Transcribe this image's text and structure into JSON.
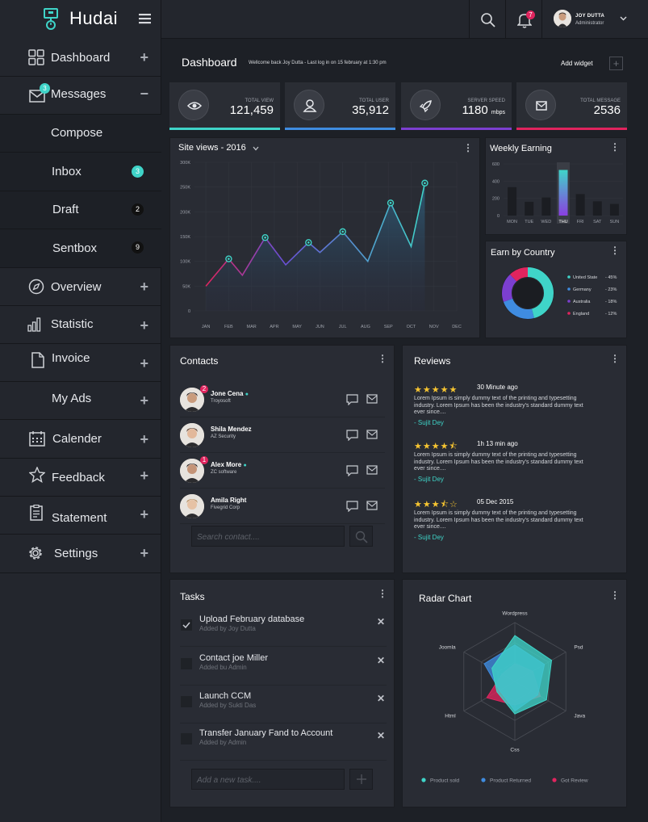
{
  "brand": {
    "name": "Hudai"
  },
  "topbar": {
    "notifications_count": "7",
    "user_name": "JOY DUTTA",
    "user_role": "Administrator"
  },
  "sidebar": {
    "dashboard": "Dashboard",
    "messages": "Messages",
    "messages_badge": "3",
    "compose": "Compose",
    "inbox": "Inbox",
    "inbox_count": "3",
    "draft": "Draft",
    "draft_count": "2",
    "sentbox": "Sentbox",
    "sentbox_count": "9",
    "overview": "Overview",
    "statistic": "Statistic",
    "invoice": "Invoice",
    "my_ads": "My Ads",
    "calender": "Calender",
    "feedback": "Feedback",
    "statement": "Statement",
    "settings": "Settings",
    "plus": "+",
    "minus": "−"
  },
  "header": {
    "title": "Dashboard",
    "welcome": "Wellcome back Joy Dutta - Last log in on 15 february at 1:30 pm",
    "add_widget": "Add widget",
    "add_icon": "+"
  },
  "stats": [
    {
      "caption": "TOTAL VIEW",
      "value": "121,459",
      "unit": "",
      "color": "#3fd4c8",
      "icon": "eye-icon"
    },
    {
      "caption": "TOTAL USER",
      "value": "35,912",
      "unit": "",
      "color": "#3f8ce0",
      "icon": "user-icon"
    },
    {
      "caption": "SERVER SPEED",
      "value": "1180",
      "unit": "mbps",
      "color": "#7c3fd0",
      "icon": "rocket-icon"
    },
    {
      "caption": "TOTAL MESSAGE",
      "value": "2536",
      "unit": "",
      "color": "#e0245e",
      "icon": "mail-icon"
    }
  ],
  "site_views": {
    "title": "Site views",
    "year": "- 2016"
  },
  "weekly": {
    "title": "Weekly Earning"
  },
  "country": {
    "title": "Earn by Country"
  },
  "contacts": {
    "title": "Contacts",
    "search_placeholder": "Search contact....",
    "items": [
      {
        "name": "Jone Cena",
        "company": "Troyosoft",
        "badge": "2",
        "online": true
      },
      {
        "name": "Shila Mendez",
        "company": "AZ Security",
        "badge": "",
        "online": false
      },
      {
        "name": "Alex More",
        "company": "ZC software",
        "badge": "1",
        "online": true
      },
      {
        "name": "Amila Right",
        "company": "Fivegrid Corp",
        "badge": "",
        "online": false
      }
    ]
  },
  "reviews": {
    "title": "Reviews",
    "items": [
      {
        "stars": "★★★★★",
        "time": "30 Minute ago",
        "text": "Lorem Ipsum is simply dummy text of the printing and typesetting industry. Lorem Ipsum has been the industry's standard dummy text ever since....",
        "by": "- Sujit Dey"
      },
      {
        "stars": "★★★★⯪",
        "time": "1h 13 min ago",
        "text": "Lorem Ipsum is simply dummy text of the printing and typesetting industry. Lorem Ipsum has been the industry's standard dummy text ever since....",
        "by": "- Sujit Dey"
      },
      {
        "stars": "★★★⯪☆",
        "time": "05 Dec 2015",
        "text": "Lorem Ipsum is simply dummy text of the printing and typesetting industry. Lorem Ipsum has been the industry's standard dummy text ever since....",
        "by": "- Sujit Dey"
      }
    ]
  },
  "tasks": {
    "title": "Tasks",
    "new_placeholder": "Add a new task....",
    "items": [
      {
        "title": "Upload February database",
        "sub": "Added by Joy Dutta",
        "done": true
      },
      {
        "title": "Contact joe Miller",
        "sub": "Added bu Admin",
        "done": false
      },
      {
        "title": "Launch CCM",
        "sub": "Added by Sukti Das",
        "done": false
      },
      {
        "title": "Transfer January Fand to Account",
        "sub": "Added by Admin",
        "done": false
      }
    ]
  },
  "radar": {
    "title": "Radar Chart"
  },
  "chart_data": [
    {
      "type": "area",
      "title": "Site views - 2016",
      "categories": [
        "JAN",
        "FEB",
        "MAR",
        "APR",
        "MAY",
        "JUN",
        "JUL",
        "AUG",
        "SEP",
        "OCT",
        "NOV",
        "DEC"
      ],
      "y_ticks": [
        "0",
        "50K",
        "100K",
        "150K",
        "200K",
        "250K",
        "300K"
      ],
      "ylim": [
        0,
        300000
      ],
      "x": [
        1.0,
        2.0,
        2.6,
        3.6,
        4.5,
        5.5,
        6.0,
        7.0,
        8.1,
        9.1,
        10.0,
        10.6
      ],
      "values": [
        50000,
        105000,
        72000,
        148000,
        93000,
        138000,
        118000,
        160000,
        100000,
        218000,
        130000,
        258000
      ],
      "markers": [
        1,
        3,
        5,
        7,
        9,
        11
      ],
      "grid": true
    },
    {
      "type": "bar",
      "title": "Weekly Earning",
      "categories": [
        "MON",
        "TUE",
        "WED",
        "THU",
        "FRI",
        "SAT",
        "SUN"
      ],
      "values": [
        330,
        160,
        210,
        530,
        250,
        165,
        135
      ],
      "y_ticks": [
        "0",
        "200",
        "400",
        "600"
      ],
      "ylim": [
        0,
        600
      ],
      "highlight": "THU"
    },
    {
      "type": "pie",
      "title": "Earn by Country",
      "labels": [
        "United State",
        "Germany",
        "Australia",
        "England"
      ],
      "values": [
        45,
        23,
        18,
        12
      ],
      "display": [
        "- 45%",
        "- 23%",
        "- 18%",
        "- 12%"
      ],
      "colors": [
        "#3fd4c8",
        "#3f8ce0",
        "#7c3fd0",
        "#e0245e"
      ]
    },
    {
      "type": "radar",
      "title": "Radar Chart",
      "axes": [
        "Wordpress",
        "Psd",
        "Java",
        "Css",
        "Html",
        "Joomla"
      ],
      "series": [
        {
          "name": "Product sold",
          "color": "#3fd4c8",
          "values": [
            0.78,
            0.72,
            0.62,
            0.55,
            0.35,
            0.45
          ]
        },
        {
          "name": "Product Returned",
          "color": "#3f8ce0",
          "values": [
            0.62,
            0.58,
            0.45,
            0.5,
            0.3,
            0.6
          ]
        },
        {
          "name": "Got Review",
          "color": "#e0245e",
          "values": [
            0.3,
            0.35,
            0.5,
            0.4,
            0.55,
            0.25
          ]
        }
      ]
    }
  ]
}
